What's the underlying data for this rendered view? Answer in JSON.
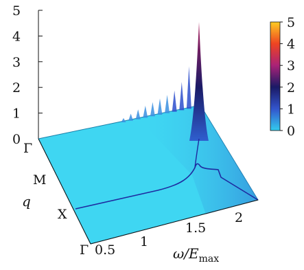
{
  "chart_data": {
    "type": "surface",
    "xlabel": "ω/E",
    "xlabel_sub": "max",
    "ylabel": "q",
    "x_ticks": [
      0.5,
      1,
      1.5,
      2
    ],
    "y_ticks": [
      "Γ",
      "M",
      "X",
      "Γ"
    ],
    "z_ticks": [
      0,
      1,
      2,
      3,
      4,
      5
    ],
    "zlim": [
      0,
      5
    ],
    "colorbar": {
      "ticks": [
        0,
        1,
        2,
        3,
        4,
        5
      ],
      "range": [
        0,
        5
      ],
      "colors": [
        "#33ccee",
        "#3355cc",
        "#1a1a66",
        "#aa2277",
        "#ee4422",
        "#ffcc22"
      ]
    },
    "dispersion_curve": [
      {
        "q": 0.0,
        "omega": 1.66
      },
      {
        "q": 0.25,
        "omega": 1.6
      },
      {
        "q": 0.4,
        "omega": 1.55
      },
      {
        "q": 0.55,
        "omega": 1.4
      },
      {
        "q": 0.667,
        "omega": 0.5
      }
    ],
    "peak": {
      "q": 0.0,
      "omega": 1.68,
      "height": 5.0
    },
    "ridge_heights": [
      0.3,
      0.5,
      0.7,
      0.85,
      1.0,
      1.15,
      1.3,
      1.5,
      2.0,
      3.0,
      5.0
    ]
  }
}
